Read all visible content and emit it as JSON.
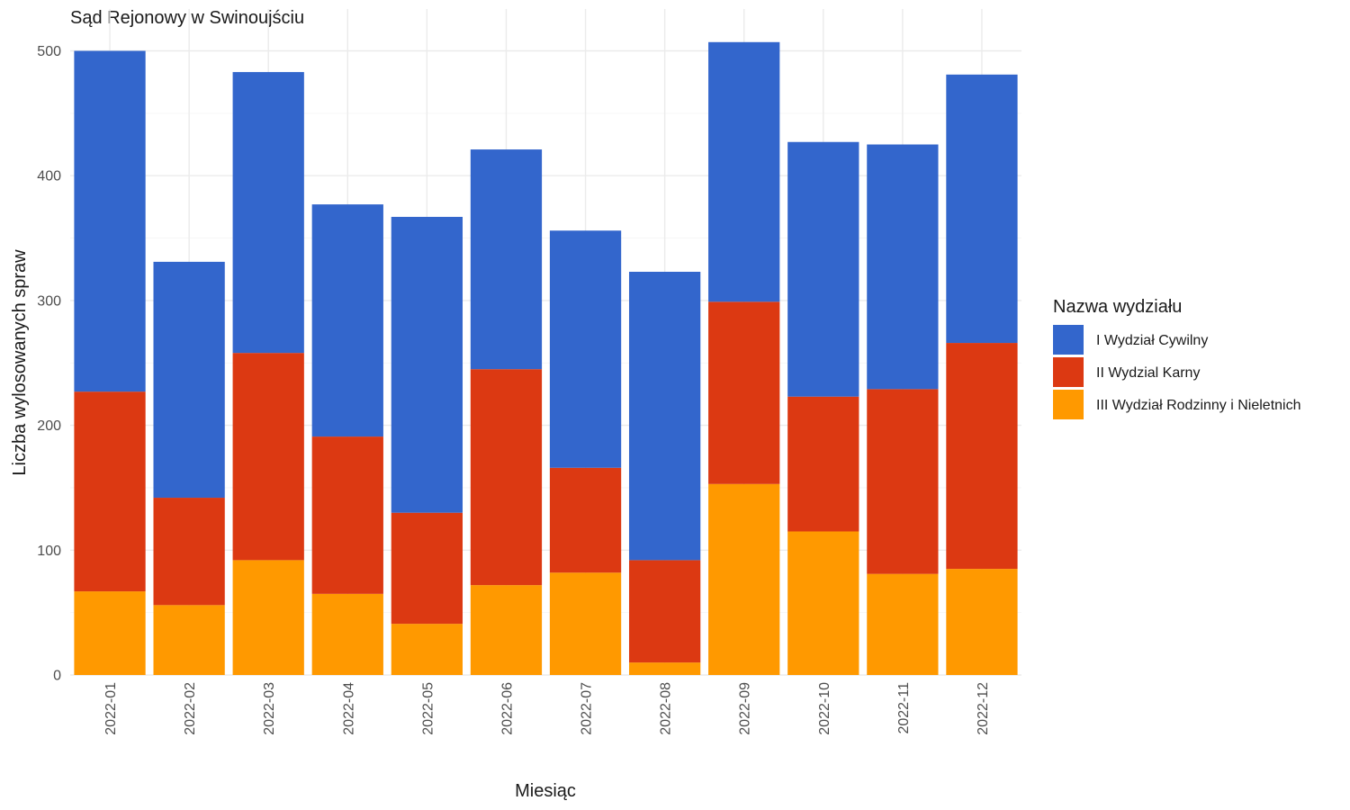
{
  "chart_data": {
    "type": "bar",
    "stacked": true,
    "title": "Sąd Rejonowy w Swinoujściu",
    "xlabel": "Miesiąc",
    "ylabel": "Liczba wylosowanych spraw",
    "ylim": [
      0,
      520
    ],
    "yticks": [
      0,
      100,
      200,
      300,
      400,
      500
    ],
    "grid": true,
    "legend_title": "Nazwa wydziału",
    "legend_position": "right",
    "categories": [
      "2022-01",
      "2022-02",
      "2022-03",
      "2022-04",
      "2022-05",
      "2022-06",
      "2022-07",
      "2022-08",
      "2022-09",
      "2022-10",
      "2022-11",
      "2022-12"
    ],
    "series": [
      {
        "name": "III Wydział Rodzinny i Nieletnich",
        "color": "#ff9900",
        "values": [
          67,
          56,
          92,
          65,
          41,
          72,
          82,
          10,
          153,
          115,
          81,
          85
        ]
      },
      {
        "name": "II Wydzial Karny",
        "color": "#dc3912",
        "values": [
          160,
          86,
          166,
          126,
          89,
          173,
          84,
          82,
          146,
          108,
          148,
          181
        ]
      },
      {
        "name": "I Wydział Cywilny",
        "color": "#3366cc",
        "values": [
          273,
          189,
          225,
          186,
          237,
          176,
          190,
          231,
          208,
          204,
          196,
          215
        ]
      }
    ],
    "legend_order": [
      "I Wydział Cywilny",
      "II Wydzial Karny",
      "III Wydział Rodzinny i Nieletnich"
    ]
  }
}
